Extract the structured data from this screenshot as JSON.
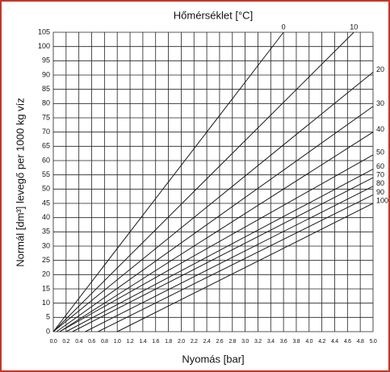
{
  "chart_data": {
    "type": "line",
    "title": "Hőmérséklet [°C]",
    "xlabel": "Nyomás [bar]",
    "ylabel": "Normál [dm³] levegő per 1000 kg víz",
    "color": "#1a1a1a",
    "grid": true,
    "xlim": [
      0,
      5
    ],
    "ylim": [
      0,
      105
    ],
    "xticks": [
      {
        "value": 0,
        "label": "0.0"
      },
      0.2,
      0.4,
      0.6,
      0.8,
      {
        "value": 1,
        "label": "1.0"
      },
      1.2,
      1.4,
      1.6,
      1.8,
      {
        "value": 2,
        "label": "2.0"
      },
      2.2,
      2.4,
      2.6,
      2.8,
      {
        "value": 3,
        "label": "3.0"
      },
      3.2,
      3.4,
      3.6,
      3.8,
      {
        "value": 4,
        "label": "4.0"
      },
      4.2,
      4.4,
      4.6,
      4.8,
      {
        "value": 5,
        "label": "5.0"
      }
    ],
    "yticks": [
      0,
      5,
      10,
      15,
      20,
      25,
      30,
      35,
      40,
      45,
      50,
      55,
      60,
      65,
      70,
      75,
      80,
      85,
      90,
      95,
      100,
      105
    ],
    "series": [
      {
        "name": "0",
        "x": [
          0,
          3.6
        ],
        "values": [
          0,
          105
        ]
      },
      {
        "name": "10",
        "x": [
          0,
          4.7
        ],
        "values": [
          0,
          105
        ]
      },
      {
        "name": "20",
        "x": [
          0,
          5
        ],
        "values": [
          0,
          91
        ]
      },
      {
        "name": "30",
        "x": [
          0.05,
          5
        ],
        "values": [
          0,
          79
        ]
      },
      {
        "name": "40",
        "x": [
          0.1,
          5
        ],
        "values": [
          0,
          70
        ]
      },
      {
        "name": "50",
        "x": [
          0.1,
          5
        ],
        "values": [
          0,
          62
        ]
      },
      {
        "name": "60",
        "x": [
          0.2,
          5
        ],
        "values": [
          0,
          57
        ]
      },
      {
        "name": "70",
        "x": [
          0.3,
          5
        ],
        "values": [
          0,
          54
        ]
      },
      {
        "name": "80",
        "x": [
          0.5,
          5
        ],
        "values": [
          0,
          51
        ]
      },
      {
        "name": "90",
        "x": [
          0.7,
          5
        ],
        "values": [
          0,
          48
        ]
      },
      {
        "name": "100",
        "x": [
          1,
          5
        ],
        "values": [
          0,
          45
        ]
      }
    ]
  }
}
